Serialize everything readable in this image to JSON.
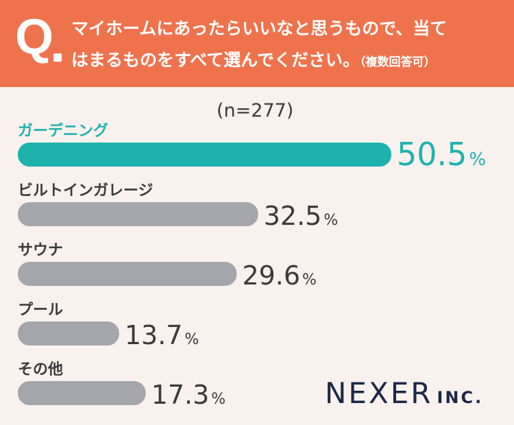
{
  "header": {
    "q_letter": "Q",
    "question_line1": "マイホームにあったらいいなと思うもので、当て",
    "question_line2": "はまるものをすべて選んでください。",
    "question_note": "（複数回答可）"
  },
  "chart_data": {
    "type": "bar",
    "orientation": "horizontal",
    "sample_label": "(n=277)",
    "categories": [
      "ガーデニング",
      "ビルトインガレージ",
      "サウナ",
      "プール",
      "その他"
    ],
    "values": [
      50.5,
      32.5,
      29.6,
      13.7,
      17.3
    ],
    "unit": "%",
    "colors": [
      "#1eb2ad",
      "#a5a6ab",
      "#a5a6ab",
      "#a5a6ab",
      "#a5a6ab"
    ],
    "label_colors": [
      "#1eb2ad",
      "#3a3a3a",
      "#3a3a3a",
      "#3a3a3a",
      "#3a3a3a"
    ]
  },
  "logo": {
    "main": "NEXER",
    "sub": "INC."
  }
}
